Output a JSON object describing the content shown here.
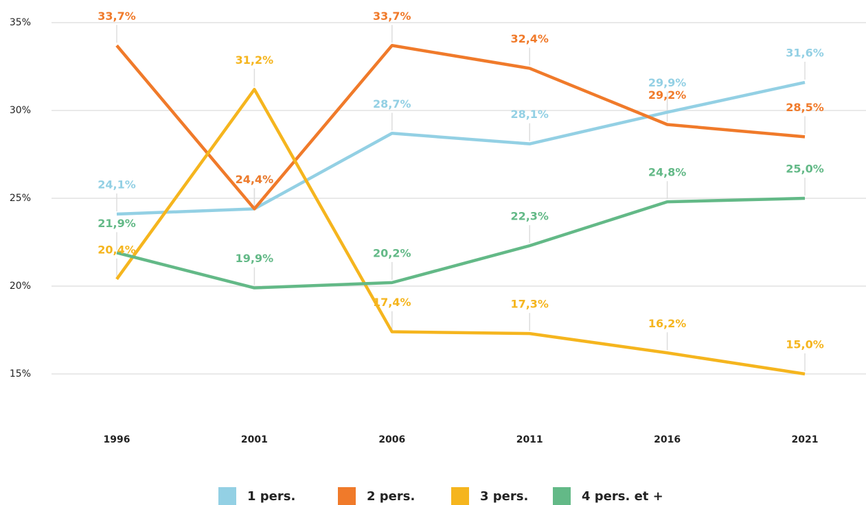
{
  "chart_data": {
    "type": "line",
    "categories": [
      "1996",
      "2001",
      "2006",
      "2011",
      "2016",
      "2021"
    ],
    "series": [
      {
        "name": "1 pers.",
        "color": "#93d0e4",
        "values": [
          24.1,
          24.4,
          28.7,
          28.1,
          29.9,
          31.6
        ],
        "value_labels": [
          "24,1%",
          "24,4%",
          "28,7%",
          "28,1%",
          "29,9%",
          "31,6%"
        ]
      },
      {
        "name": "2 pers.",
        "color": "#f07a2a",
        "values": [
          33.7,
          24.4,
          33.7,
          32.4,
          29.2,
          28.5
        ],
        "value_labels": [
          "33,7%",
          "24,4%",
          "33,7%",
          "32,4%",
          "29,2%",
          "28,5%"
        ]
      },
      {
        "name": "3 pers.",
        "color": "#f5b51e",
        "values": [
          20.4,
          31.2,
          17.4,
          17.3,
          16.2,
          15.0
        ],
        "value_labels": [
          "20,4%",
          "31,2%",
          "17,4%",
          "17,3%",
          "16,2%",
          "15,0%"
        ]
      },
      {
        "name": "4 pers. et +",
        "color": "#63b987",
        "values": [
          21.9,
          19.9,
          20.2,
          22.3,
          24.8,
          25.0
        ],
        "value_labels": [
          "21,9%",
          "19,9%",
          "20,2%",
          "22,3%",
          "24,8%",
          "25,0%"
        ]
      }
    ],
    "ylim": [
      15,
      35
    ],
    "yticks": [
      {
        "value": 15,
        "label": "15%"
      },
      {
        "value": 20,
        "label": "20%"
      },
      {
        "value": 25,
        "label": "25%"
      },
      {
        "value": 30,
        "label": "30%"
      },
      {
        "value": 35,
        "label": "35%"
      }
    ],
    "grid": true,
    "legend": "bottom"
  }
}
